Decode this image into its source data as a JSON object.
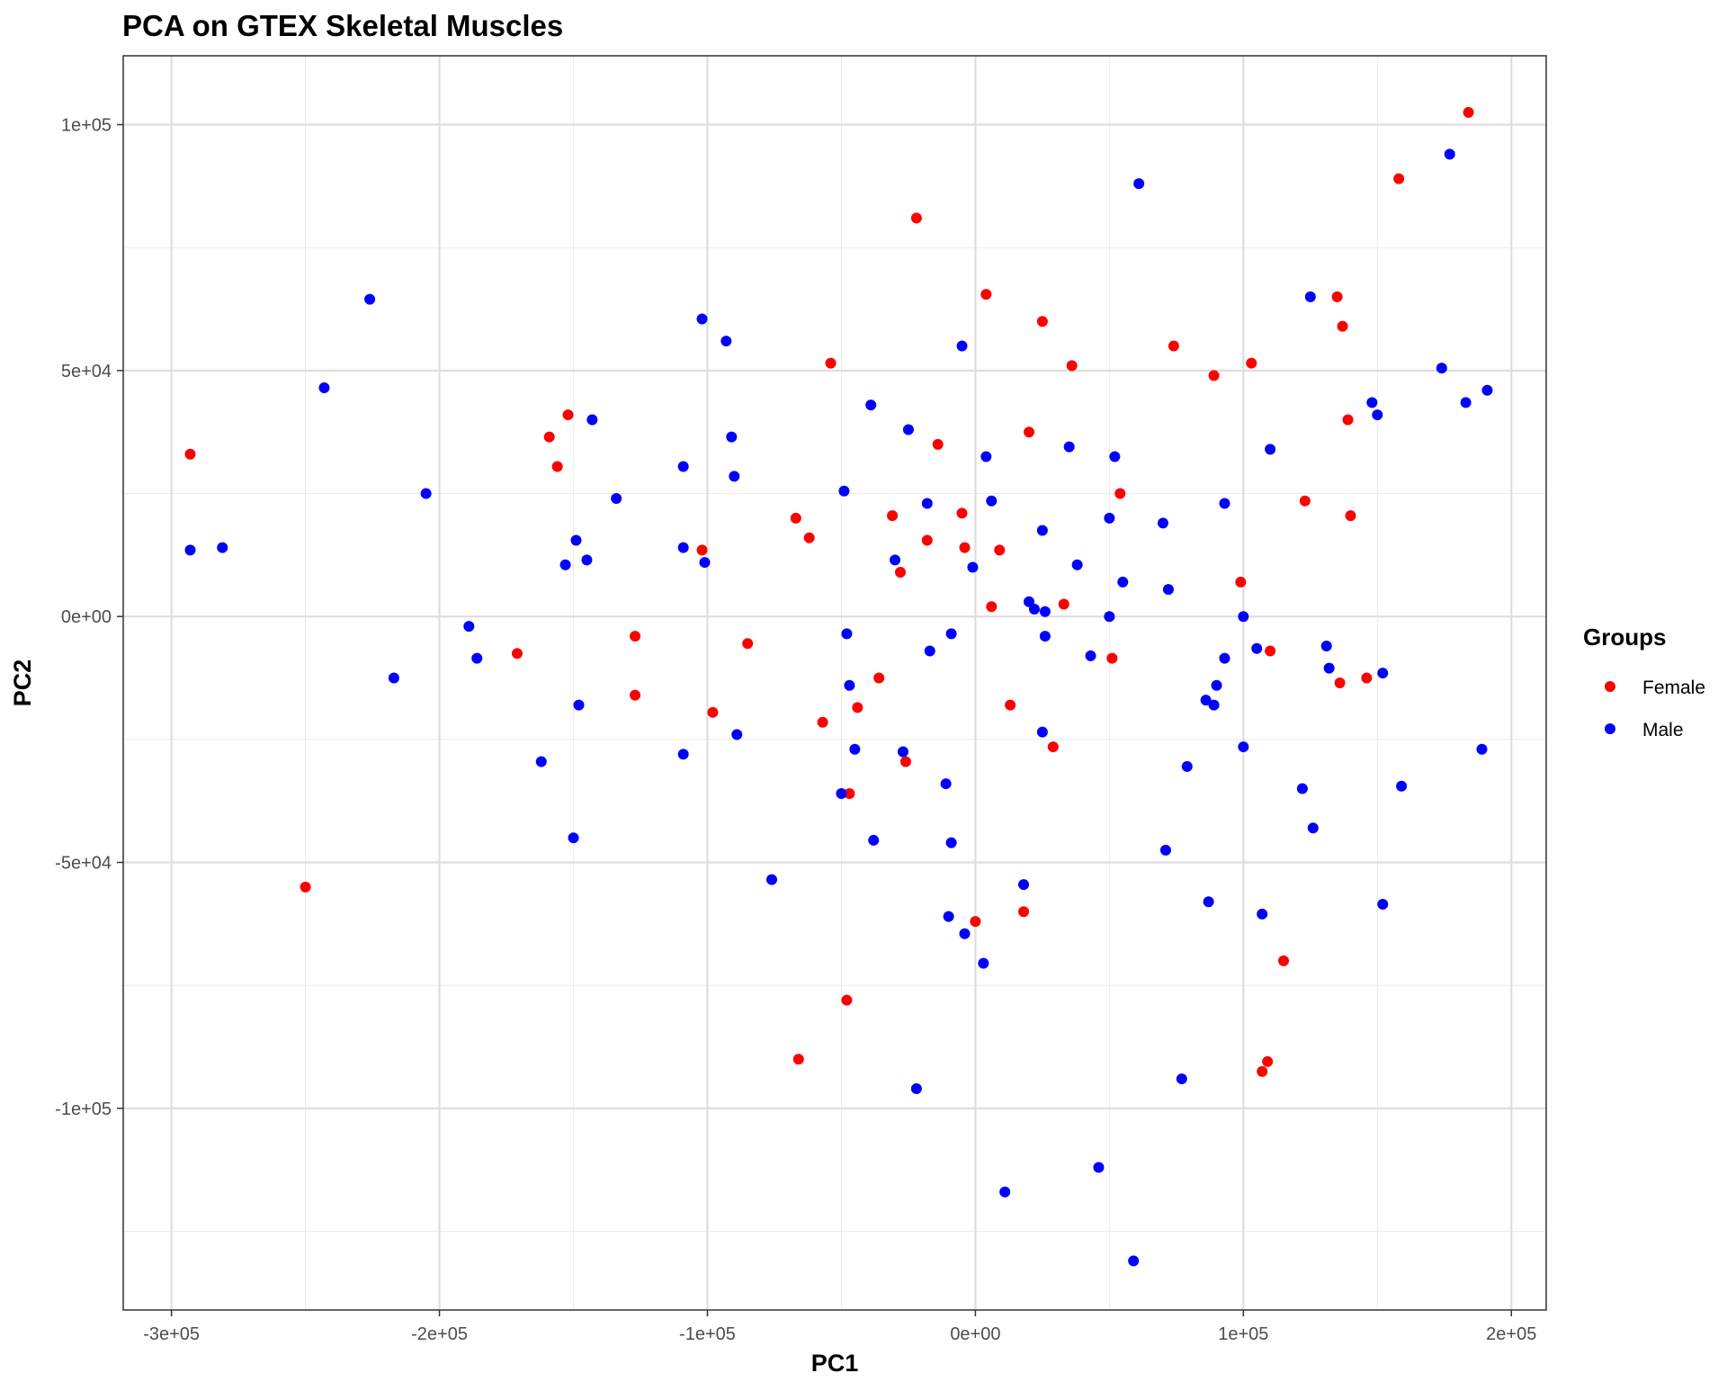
{
  "chart_data": {
    "type": "scatter",
    "title": "PCA on GTEX Skeletal Muscles",
    "xlabel": "PC1",
    "ylabel": "PC2",
    "xlim": [
      -318000,
      213000
    ],
    "ylim": [
      -141000,
      114000
    ],
    "x_ticks": [
      {
        "value": -300000,
        "label": "-3e+05"
      },
      {
        "value": -200000,
        "label": "-2e+05"
      },
      {
        "value": -100000,
        "label": "-1e+05"
      },
      {
        "value": 0,
        "label": "0e+00"
      },
      {
        "value": 100000,
        "label": "1e+05"
      },
      {
        "value": 200000,
        "label": "2e+05"
      }
    ],
    "y_ticks": [
      {
        "value": 100000,
        "label": "1e+05"
      },
      {
        "value": 50000,
        "label": "5e+04"
      },
      {
        "value": 0,
        "label": "0e+00"
      },
      {
        "value": -50000,
        "label": "-5e+04"
      },
      {
        "value": -100000,
        "label": "-1e+05"
      }
    ],
    "grid": true,
    "legend": {
      "title": "Groups",
      "position": "right"
    },
    "series": [
      {
        "name": "Female",
        "color": "#ff0000",
        "points": [
          [
            -293000,
            33000
          ],
          [
            -250000,
            -55000
          ],
          [
            -171000,
            -7500
          ],
          [
            -159000,
            36500
          ],
          [
            -156000,
            30500
          ],
          [
            -152000,
            41000
          ],
          [
            -127000,
            -4000
          ],
          [
            -127000,
            -16000
          ],
          [
            -102000,
            13500
          ],
          [
            -98000,
            -19500
          ],
          [
            -85000,
            -5500
          ],
          [
            -67000,
            20000
          ],
          [
            -66000,
            -90000
          ],
          [
            -62000,
            16000
          ],
          [
            -57000,
            -21500
          ],
          [
            -54000,
            51500
          ],
          [
            -48000,
            -78000
          ],
          [
            -47000,
            -36000
          ],
          [
            -44000,
            -18500
          ],
          [
            -36000,
            -12500
          ],
          [
            -31000,
            20500
          ],
          [
            -28000,
            9000
          ],
          [
            -26000,
            -29500
          ],
          [
            -22000,
            81000
          ],
          [
            -18000,
            15500
          ],
          [
            -14000,
            35000
          ],
          [
            -5000,
            21000
          ],
          [
            -4000,
            14000
          ],
          [
            0,
            -62000
          ],
          [
            4000,
            65500
          ],
          [
            6000,
            2000
          ],
          [
            9000,
            13500
          ],
          [
            13000,
            -18000
          ],
          [
            18000,
            -60000
          ],
          [
            20000,
            37500
          ],
          [
            25000,
            60000
          ],
          [
            29000,
            -26500
          ],
          [
            33000,
            2500
          ],
          [
            36000,
            51000
          ],
          [
            51000,
            -8500
          ],
          [
            54000,
            25000
          ],
          [
            74000,
            55000
          ],
          [
            89000,
            49000
          ],
          [
            99000,
            7000
          ],
          [
            103000,
            51500
          ],
          [
            107000,
            -92500
          ],
          [
            109000,
            -90500
          ],
          [
            110000,
            -7000
          ],
          [
            115000,
            -70000
          ],
          [
            123000,
            23500
          ],
          [
            135000,
            65000
          ],
          [
            136000,
            -13500
          ],
          [
            137000,
            59000
          ],
          [
            139000,
            40000
          ],
          [
            140000,
            20500
          ],
          [
            146000,
            -12500
          ],
          [
            158000,
            89000
          ],
          [
            184000,
            102500
          ]
        ]
      },
      {
        "name": "Male",
        "color": "#0000ff",
        "points": [
          [
            -293000,
            13500
          ],
          [
            -281000,
            14000
          ],
          [
            -226000,
            64500
          ],
          [
            -243000,
            46500
          ],
          [
            -217000,
            -12500
          ],
          [
            -205000,
            25000
          ],
          [
            -189000,
            -2000
          ],
          [
            -186000,
            -8500
          ],
          [
            -162000,
            -29500
          ],
          [
            -153000,
            10500
          ],
          [
            -150000,
            -45000
          ],
          [
            -149000,
            15500
          ],
          [
            -148000,
            -18000
          ],
          [
            -145000,
            11500
          ],
          [
            -143000,
            40000
          ],
          [
            -134000,
            24000
          ],
          [
            -109000,
            30500
          ],
          [
            -109000,
            14000
          ],
          [
            -109000,
            -28000
          ],
          [
            -102000,
            60500
          ],
          [
            -101000,
            11000
          ],
          [
            -93000,
            56000
          ],
          [
            -91000,
            36500
          ],
          [
            -90000,
            28500
          ],
          [
            -89000,
            -24000
          ],
          [
            -76000,
            -53500
          ],
          [
            -50000,
            -36000
          ],
          [
            -49000,
            25500
          ],
          [
            -48000,
            -3500
          ],
          [
            -47000,
            -14000
          ],
          [
            -45000,
            -27000
          ],
          [
            -39000,
            43000
          ],
          [
            -38000,
            -45500
          ],
          [
            -30000,
            11500
          ],
          [
            -27000,
            -27500
          ],
          [
            -25000,
            38000
          ],
          [
            -22000,
            -96000
          ],
          [
            -18000,
            23000
          ],
          [
            -17000,
            -7000
          ],
          [
            -11000,
            -34000
          ],
          [
            -10000,
            -61000
          ],
          [
            -9000,
            -3500
          ],
          [
            -9000,
            -46000
          ],
          [
            -5000,
            55000
          ],
          [
            -4000,
            -64500
          ],
          [
            -1000,
            10000
          ],
          [
            3000,
            -70500
          ],
          [
            4000,
            32500
          ],
          [
            6000,
            23500
          ],
          [
            11000,
            -117000
          ],
          [
            18000,
            -54500
          ],
          [
            20000,
            3000
          ],
          [
            22000,
            1500
          ],
          [
            25000,
            -23500
          ],
          [
            25000,
            17500
          ],
          [
            26000,
            -4000
          ],
          [
            26000,
            1000
          ],
          [
            35000,
            34500
          ],
          [
            38000,
            10500
          ],
          [
            43000,
            -8000
          ],
          [
            46000,
            -112000
          ],
          [
            50000,
            20000
          ],
          [
            50000,
            0
          ],
          [
            52000,
            32500
          ],
          [
            55000,
            7000
          ],
          [
            59000,
            -131000
          ],
          [
            61000,
            88000
          ],
          [
            70000,
            19000
          ],
          [
            71000,
            -47500
          ],
          [
            72000,
            5500
          ],
          [
            79000,
            -30500
          ],
          [
            77000,
            -94000
          ],
          [
            86000,
            -17000
          ],
          [
            87000,
            -58000
          ],
          [
            89000,
            -18000
          ],
          [
            90000,
            -14000
          ],
          [
            93000,
            23000
          ],
          [
            93000,
            -8500
          ],
          [
            100000,
            -26500
          ],
          [
            100000,
            0
          ],
          [
            105000,
            -6500
          ],
          [
            107000,
            -60500
          ],
          [
            110000,
            34000
          ],
          [
            122000,
            -35000
          ],
          [
            125000,
            65000
          ],
          [
            126000,
            -43000
          ],
          [
            131000,
            -6000
          ],
          [
            132000,
            -10500
          ],
          [
            148000,
            43500
          ],
          [
            150000,
            41000
          ],
          [
            152000,
            -11500
          ],
          [
            152000,
            -58500
          ],
          [
            159000,
            -34500
          ],
          [
            174000,
            50500
          ],
          [
            177000,
            94000
          ],
          [
            183000,
            43500
          ],
          [
            189000,
            -27000
          ],
          [
            191000,
            46000
          ]
        ]
      }
    ]
  }
}
